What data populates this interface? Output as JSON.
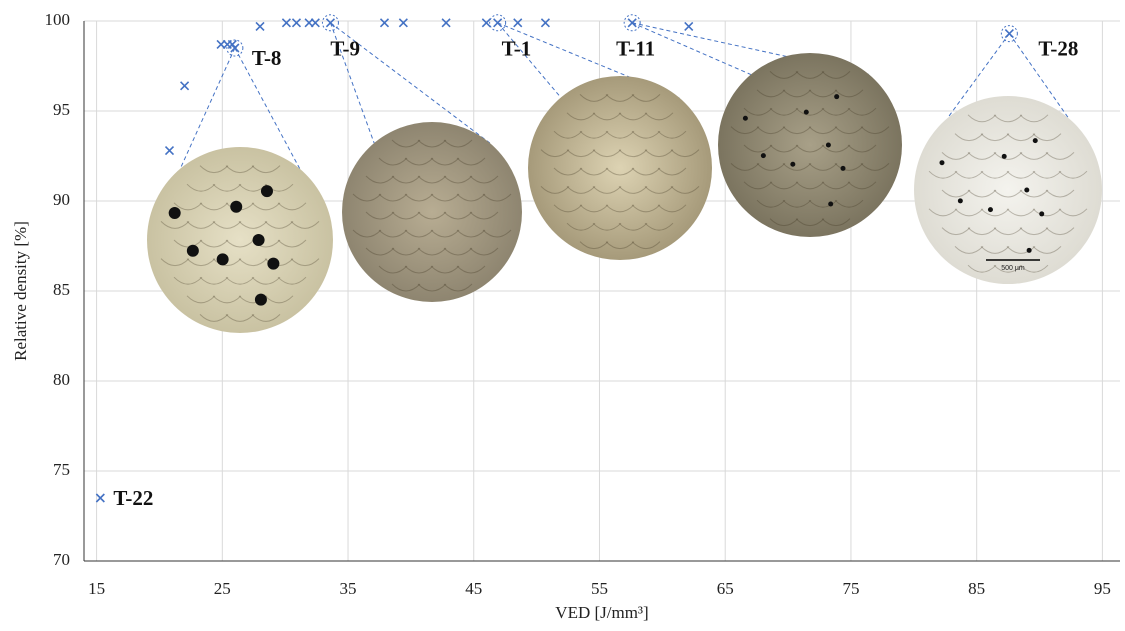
{
  "chart_data": {
    "type": "scatter",
    "x_label": "VED [J/mm³]",
    "y_label": "Relative density [%]",
    "x": [
      15.3,
      20.8,
      22.0,
      24.9,
      25.4,
      25.8,
      28.0,
      26.0,
      30.1,
      30.9,
      31.9,
      32.4,
      33.6,
      37.9,
      39.4,
      42.8,
      46.0,
      46.9,
      48.5,
      50.7,
      57.6,
      62.1,
      87.6
    ],
    "series": [
      {
        "color": "#4472c4",
        "marker": "x",
        "values": [
          73.5,
          92.8,
          96.4,
          98.7,
          98.7,
          98.7,
          99.7,
          98.5,
          99.9,
          99.9,
          99.9,
          99.9,
          99.9,
          99.9,
          99.9,
          99.9,
          99.9,
          99.9,
          99.9,
          99.9,
          99.9,
          99.7,
          99.3
        ]
      }
    ],
    "point_labels": [
      "T-22",
      null,
      null,
      null,
      null,
      null,
      null,
      "T-8",
      null,
      null,
      null,
      null,
      "T-9",
      null,
      null,
      null,
      null,
      "T-1",
      null,
      null,
      "T-11",
      null,
      "T-28"
    ],
    "inset_scale_label": "500 µm",
    "xlim": [
      14,
      96.4
    ],
    "ylim": [
      70,
      100
    ],
    "xticks": [
      15,
      25,
      35,
      45,
      55,
      65,
      75,
      85,
      95
    ],
    "yticks": [
      70,
      75,
      80,
      85,
      90,
      95,
      100
    ],
    "grid": true
  }
}
